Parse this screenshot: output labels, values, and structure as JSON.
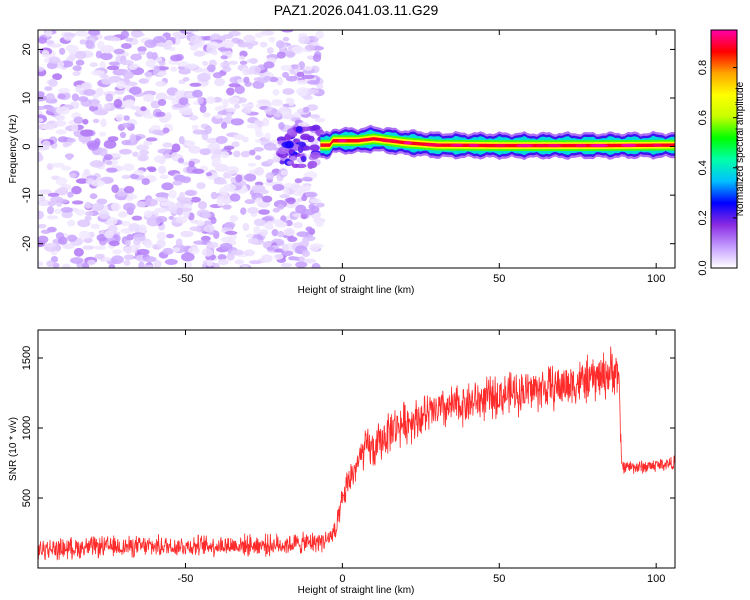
{
  "title": "PAZ1.2026.041.03.11.G29",
  "chart_data": [
    {
      "type": "heatmap",
      "xlabel": "Height of straight line (km)",
      "ylabel": "Frequency (Hz)",
      "xlim": [
        -97,
        106
      ],
      "ylim": [
        -25,
        24
      ],
      "xticks": [
        -50,
        0,
        50,
        100
      ],
      "yticks": [
        -20,
        -10,
        0,
        10,
        20
      ],
      "colorbar": {
        "label": "Normalized spectral amplitude",
        "range": [
          0.0,
          0.95
        ],
        "ticks": [
          0.0,
          0.2,
          0.4,
          0.6,
          0.8
        ],
        "colors": [
          "#ffffff",
          "#c39bff",
          "#8a2be2",
          "#0000ff",
          "#00bfff",
          "#00ffaa",
          "#00ff00",
          "#c8ff00",
          "#ffff00",
          "#ffa500",
          "#ff0000",
          "#ff00aa"
        ]
      },
      "regions": [
        {
          "name": "noise",
          "x_range": [
            -97,
            -7
          ],
          "freq_range": [
            -25,
            24
          ],
          "amplitude_range": [
            0.02,
            0.12
          ]
        },
        {
          "name": "tone",
          "x_range": [
            -7,
            106
          ],
          "freq_center": [
            -3,
            1.2,
            5,
            1.2,
            10,
            1.6,
            20,
            0.8,
            30,
            0.3,
            50,
            0.2,
            80,
            0.2,
            106,
            0.3
          ],
          "peak_amplitude": 0.95
        }
      ]
    },
    {
      "type": "line",
      "xlabel": "Height of straight line (km)",
      "ylabel": "SNR (10 * v/v)",
      "xlim": [
        -97,
        106
      ],
      "ylim": [
        0,
        1700
      ],
      "xticks": [
        -50,
        0,
        50,
        100
      ],
      "yticks": [
        500,
        1000,
        1500
      ],
      "series": [
        {
          "color": "#ff2a2a",
          "x": [
            -97,
            -80,
            -60,
            -40,
            -20,
            -10,
            -5,
            -2,
            0,
            2,
            5,
            8,
            10,
            12,
            15,
            20,
            25,
            30,
            40,
            50,
            60,
            70,
            80,
            86,
            88,
            89,
            95,
            100,
            106
          ],
          "y": [
            130,
            150,
            155,
            160,
            165,
            180,
            200,
            260,
            480,
            620,
            750,
            880,
            830,
            900,
            980,
            1040,
            1080,
            1120,
            1180,
            1230,
            1270,
            1300,
            1350,
            1400,
            1410,
            730,
            720,
            735,
            750
          ],
          "noise_amplitude": [
            90,
            90,
            90,
            90,
            90,
            90,
            90,
            100,
            120,
            140,
            150,
            160,
            170,
            180,
            180,
            180,
            180,
            180,
            180,
            180,
            190,
            190,
            200,
            210,
            200,
            60,
            60,
            60,
            60
          ]
        }
      ]
    }
  ]
}
